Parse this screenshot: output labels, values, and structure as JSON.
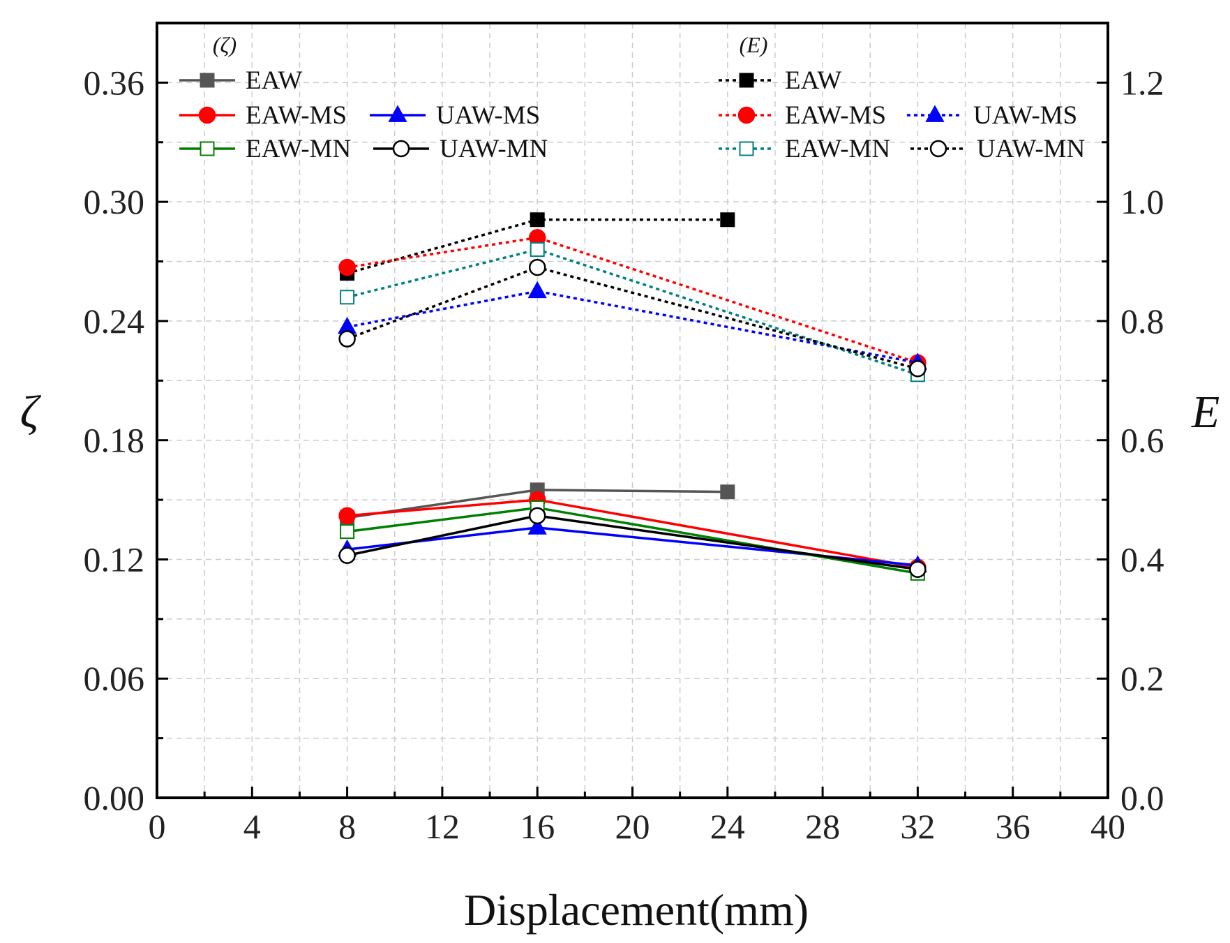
{
  "chart_data": {
    "type": "line",
    "x_axis": {
      "label": "Displacement(mm)",
      "range": [
        0,
        40
      ],
      "ticks": [
        0,
        4,
        8,
        12,
        16,
        20,
        24,
        28,
        32,
        36,
        40
      ],
      "tick_labels": [
        "0",
        "4",
        "8",
        "12",
        "16",
        "20",
        "24",
        "28",
        "32",
        "36",
        "40"
      ]
    },
    "y_left": {
      "label": "ζ",
      "range": [
        0,
        0.39
      ],
      "ticks": [
        0,
        0.06,
        0.12,
        0.18,
        0.24,
        0.3,
        0.36
      ],
      "tick_labels": [
        "0.00",
        "0.06",
        "0.12",
        "0.18",
        "0.24",
        "0.30",
        "0.36"
      ]
    },
    "y_right": {
      "label": "E",
      "range": [
        0,
        1.3
      ],
      "ticks": [
        0,
        0.2,
        0.4,
        0.6,
        0.8,
        1.0,
        1.2
      ],
      "tick_labels": [
        "0.0",
        "0.2",
        "0.4",
        "0.6",
        "0.8",
        "1.0",
        "1.2"
      ]
    },
    "grid": true,
    "legend_left_title": "(ζ)",
    "legend_right_title": "(E)",
    "series": [
      {
        "name": "EAW",
        "axis": "left",
        "style": "solid",
        "color": "#555555",
        "marker": "square-filled",
        "x": [
          8,
          16,
          24
        ],
        "y": [
          0.141,
          0.155,
          0.154
        ]
      },
      {
        "name": "EAW-MS",
        "axis": "left",
        "style": "solid",
        "color": "#ff0000",
        "marker": "circle-filled",
        "x": [
          8,
          16,
          32
        ],
        "y": [
          0.142,
          0.15,
          0.116
        ]
      },
      {
        "name": "UAW-MS",
        "axis": "left",
        "style": "solid",
        "color": "#0000ff",
        "marker": "triangle-filled",
        "x": [
          8,
          16,
          32
        ],
        "y": [
          0.125,
          0.136,
          0.117
        ]
      },
      {
        "name": "EAW-MN",
        "axis": "left",
        "style": "solid",
        "color": "#008000",
        "marker": "square-open",
        "x": [
          8,
          16,
          32
        ],
        "y": [
          0.134,
          0.146,
          0.113
        ]
      },
      {
        "name": "UAW-MN",
        "axis": "left",
        "style": "solid",
        "color": "#000000",
        "marker": "circle-open",
        "x": [
          8,
          16,
          32
        ],
        "y": [
          0.122,
          0.142,
          0.115
        ]
      },
      {
        "name": "EAW",
        "axis": "right",
        "style": "dotted",
        "color": "#000000",
        "marker": "square-filled",
        "x": [
          8,
          16,
          24
        ],
        "y": [
          0.88,
          0.97,
          0.97
        ]
      },
      {
        "name": "EAW-MS",
        "axis": "right",
        "style": "dotted",
        "color": "#ff0000",
        "marker": "circle-filled",
        "x": [
          8,
          16,
          32
        ],
        "y": [
          0.89,
          0.94,
          0.73
        ]
      },
      {
        "name": "UAW-MS",
        "axis": "right",
        "style": "dotted",
        "color": "#0000ff",
        "marker": "triangle-filled",
        "x": [
          8,
          16,
          32
        ],
        "y": [
          0.79,
          0.85,
          0.73
        ]
      },
      {
        "name": "EAW-MN",
        "axis": "right",
        "style": "dotted",
        "color": "#008080",
        "marker": "square-open",
        "x": [
          8,
          16,
          32
        ],
        "y": [
          0.84,
          0.92,
          0.71
        ]
      },
      {
        "name": "UAW-MN",
        "axis": "right",
        "style": "dotted",
        "color": "#000000",
        "marker": "circle-open",
        "x": [
          8,
          16,
          32
        ],
        "y": [
          0.77,
          0.89,
          0.72
        ]
      }
    ]
  }
}
